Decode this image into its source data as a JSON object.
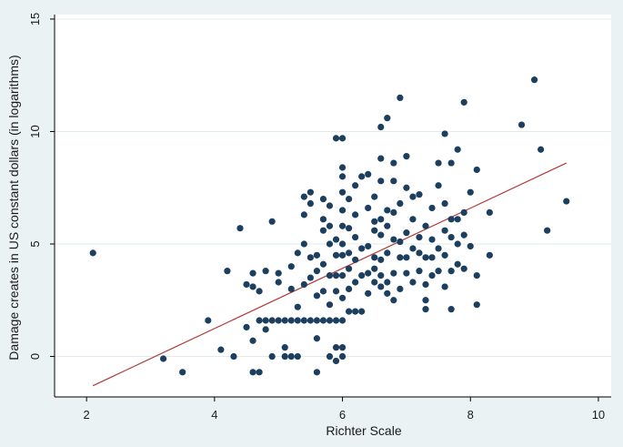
{
  "chart_data": {
    "type": "scatter",
    "xlabel": "Richter Scale",
    "ylabel": "Damage creates in US constant dollars (in logarithms)",
    "xlim": [
      1.5,
      10.2
    ],
    "ylim": [
      -1.8,
      15.2
    ],
    "xticks": [
      2,
      4,
      6,
      8,
      10
    ],
    "yticks": [
      0,
      5,
      10,
      15
    ],
    "grid": "horizontal",
    "colors": {
      "background": "#eaf2f3",
      "plot_area": "#ffffff",
      "grid": "#e2ecee",
      "marker": "#1c3f5f",
      "fit_line": "#b03a3a",
      "axis": "#000000"
    },
    "fit_line": {
      "x": [
        2.1,
        9.5
      ],
      "y": [
        -1.3,
        8.6
      ]
    },
    "points": [
      [
        2.1,
        4.6
      ],
      [
        3.2,
        -0.1
      ],
      [
        3.5,
        -0.7
      ],
      [
        3.9,
        1.6
      ],
      [
        4.1,
        0.3
      ],
      [
        4.2,
        3.8
      ],
      [
        4.3,
        0.0
      ],
      [
        4.4,
        5.7
      ],
      [
        4.5,
        3.2
      ],
      [
        4.5,
        1.3
      ],
      [
        4.6,
        3.1
      ],
      [
        4.6,
        3.7
      ],
      [
        4.6,
        0.7
      ],
      [
        4.6,
        -0.7
      ],
      [
        4.7,
        -0.7
      ],
      [
        4.7,
        1.6
      ],
      [
        4.7,
        2.9
      ],
      [
        4.8,
        3.8
      ],
      [
        4.8,
        1.6
      ],
      [
        4.8,
        1.2
      ],
      [
        4.9,
        1.6
      ],
      [
        4.9,
        0.0
      ],
      [
        4.9,
        6.0
      ],
      [
        5.0,
        3.3
      ],
      [
        5.0,
        3.7
      ],
      [
        5.0,
        1.6
      ],
      [
        5.1,
        1.6
      ],
      [
        5.1,
        0.4
      ],
      [
        5.1,
        0.0
      ],
      [
        5.2,
        3.0
      ],
      [
        5.2,
        4.0
      ],
      [
        5.2,
        1.6
      ],
      [
        5.2,
        0.0
      ],
      [
        5.3,
        1.6
      ],
      [
        5.3,
        2.2
      ],
      [
        5.3,
        4.6
      ],
      [
        5.3,
        0.0
      ],
      [
        5.4,
        1.6
      ],
      [
        5.4,
        3.2
      ],
      [
        5.4,
        5.0
      ],
      [
        5.4,
        6.3
      ],
      [
        5.4,
        7.1
      ],
      [
        5.5,
        1.6
      ],
      [
        5.5,
        3.5
      ],
      [
        5.5,
        4.4
      ],
      [
        5.5,
        6.8
      ],
      [
        5.5,
        7.3
      ],
      [
        5.6,
        1.6
      ],
      [
        5.6,
        2.7
      ],
      [
        5.6,
        3.8
      ],
      [
        5.6,
        4.5
      ],
      [
        5.6,
        -0.7
      ],
      [
        5.6,
        0.8
      ],
      [
        5.7,
        1.6
      ],
      [
        5.7,
        2.9
      ],
      [
        5.7,
        4.1
      ],
      [
        5.7,
        5.6
      ],
      [
        5.7,
        6.1
      ],
      [
        5.7,
        7.0
      ],
      [
        5.8,
        1.6
      ],
      [
        5.8,
        2.3
      ],
      [
        5.8,
        3.6
      ],
      [
        5.8,
        5.0
      ],
      [
        5.8,
        5.8
      ],
      [
        5.8,
        6.7
      ],
      [
        5.8,
        0.0
      ],
      [
        5.9,
        1.6
      ],
      [
        5.9,
        2.9
      ],
      [
        5.9,
        3.6
      ],
      [
        5.9,
        4.5
      ],
      [
        5.9,
        5.2
      ],
      [
        5.9,
        9.7
      ],
      [
        5.9,
        -0.2
      ],
      [
        5.9,
        0.4
      ],
      [
        6.0,
        1.6
      ],
      [
        6.0,
        2.6
      ],
      [
        6.0,
        3.6
      ],
      [
        6.0,
        4.5
      ],
      [
        6.0,
        5.0
      ],
      [
        6.0,
        5.8
      ],
      [
        6.0,
        6.5
      ],
      [
        6.0,
        7.3
      ],
      [
        6.0,
        8.0
      ],
      [
        6.0,
        8.4
      ],
      [
        6.0,
        9.7
      ],
      [
        6.0,
        0.0
      ],
      [
        6.0,
        0.4
      ],
      [
        6.1,
        2.0
      ],
      [
        6.1,
        3.0
      ],
      [
        6.1,
        3.9
      ],
      [
        6.1,
        4.6
      ],
      [
        6.1,
        5.7
      ],
      [
        6.1,
        7.0
      ],
      [
        6.2,
        2.0
      ],
      [
        6.2,
        3.3
      ],
      [
        6.2,
        4.3
      ],
      [
        6.2,
        5.3
      ],
      [
        6.2,
        6.3
      ],
      [
        6.2,
        7.6
      ],
      [
        6.3,
        2.0
      ],
      [
        6.3,
        3.6
      ],
      [
        6.3,
        4.8
      ],
      [
        6.3,
        8.0
      ],
      [
        6.4,
        2.8
      ],
      [
        6.4,
        3.7
      ],
      [
        6.4,
        4.9
      ],
      [
        6.4,
        6.6
      ],
      [
        6.4,
        8.1
      ],
      [
        6.5,
        3.3
      ],
      [
        6.5,
        3.9
      ],
      [
        6.5,
        4.4
      ],
      [
        6.5,
        5.6
      ],
      [
        6.5,
        6.0
      ],
      [
        6.5,
        7.1
      ],
      [
        6.6,
        3.1
      ],
      [
        6.6,
        3.6
      ],
      [
        6.6,
        4.3
      ],
      [
        6.6,
        5.4
      ],
      [
        6.6,
        6.1
      ],
      [
        6.6,
        7.8
      ],
      [
        6.6,
        8.8
      ],
      [
        6.6,
        10.2
      ],
      [
        6.7,
        2.8
      ],
      [
        6.7,
        3.3
      ],
      [
        6.7,
        4.6
      ],
      [
        6.7,
        5.8
      ],
      [
        6.7,
        6.5
      ],
      [
        6.7,
        10.6
      ],
      [
        6.8,
        2.5
      ],
      [
        6.8,
        3.7
      ],
      [
        6.8,
        5.2
      ],
      [
        6.8,
        6.4
      ],
      [
        6.8,
        7.8
      ],
      [
        6.8,
        8.6
      ],
      [
        6.9,
        3.0
      ],
      [
        6.9,
        4.4
      ],
      [
        6.9,
        5.1
      ],
      [
        6.9,
        6.8
      ],
      [
        6.9,
        11.5
      ],
      [
        7.0,
        3.7
      ],
      [
        7.0,
        4.4
      ],
      [
        7.0,
        5.5
      ],
      [
        7.0,
        7.5
      ],
      [
        7.0,
        8.9
      ],
      [
        7.1,
        3.3
      ],
      [
        7.1,
        4.8
      ],
      [
        7.1,
        6.1
      ],
      [
        7.1,
        7.1
      ],
      [
        7.2,
        3.8
      ],
      [
        7.2,
        4.6
      ],
      [
        7.2,
        5.3
      ],
      [
        7.2,
        7.2
      ],
      [
        7.3,
        2.1
      ],
      [
        7.3,
        2.5
      ],
      [
        7.3,
        3.2
      ],
      [
        7.3,
        4.4
      ],
      [
        7.3,
        5.8
      ],
      [
        7.4,
        3.6
      ],
      [
        7.4,
        4.4
      ],
      [
        7.4,
        5.2
      ],
      [
        7.4,
        6.6
      ],
      [
        7.5,
        3.8
      ],
      [
        7.5,
        4.8
      ],
      [
        7.5,
        7.6
      ],
      [
        7.5,
        8.6
      ],
      [
        7.6,
        3.1
      ],
      [
        7.6,
        4.5
      ],
      [
        7.6,
        5.6
      ],
      [
        7.6,
        6.8
      ],
      [
        7.6,
        9.9
      ],
      [
        7.7,
        2.1
      ],
      [
        7.7,
        3.8
      ],
      [
        7.7,
        5.3
      ],
      [
        7.7,
        6.1
      ],
      [
        7.7,
        8.6
      ],
      [
        7.8,
        4.1
      ],
      [
        7.8,
        5.0
      ],
      [
        7.8,
        6.1
      ],
      [
        7.8,
        9.2
      ],
      [
        7.9,
        3.9
      ],
      [
        7.9,
        5.4
      ],
      [
        7.9,
        6.4
      ],
      [
        7.9,
        11.3
      ],
      [
        8.0,
        4.9
      ],
      [
        8.0,
        7.3
      ],
      [
        8.1,
        2.3
      ],
      [
        8.1,
        3.6
      ],
      [
        8.1,
        8.3
      ],
      [
        8.3,
        4.5
      ],
      [
        8.3,
        6.4
      ],
      [
        8.8,
        10.3
      ],
      [
        9.0,
        12.3
      ],
      [
        9.1,
        9.2
      ],
      [
        9.2,
        5.6
      ],
      [
        9.5,
        6.9
      ]
    ]
  }
}
